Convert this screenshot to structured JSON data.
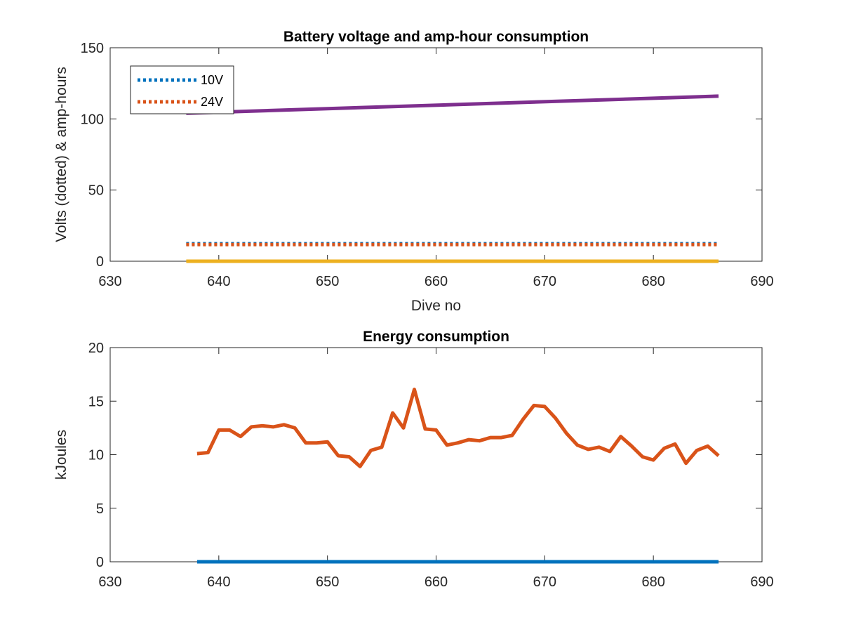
{
  "chart_data": [
    {
      "type": "line",
      "title": "Battery voltage and amp-hour consumption",
      "xlabel": "Dive no",
      "ylabel": "Volts (dotted) & amp-hours",
      "xlim": [
        630,
        690
      ],
      "ylim": [
        0,
        150
      ],
      "xticks": [
        "630",
        "640",
        "650",
        "660",
        "670",
        "680",
        "690"
      ],
      "yticks": [
        "0",
        "50",
        "100",
        "150"
      ],
      "grid": false,
      "legend_position": "top-left",
      "series": [
        {
          "name": "10V",
          "color": "#0072BD",
          "style": "dotted",
          "x": [
            637,
            686
          ],
          "y": [
            12.3,
            12.3
          ]
        },
        {
          "name": "24V",
          "color": "#D95319",
          "style": "dotted",
          "x": [
            637,
            686
          ],
          "y": [
            11.7,
            11.7
          ]
        },
        {
          "color": "#EDB120",
          "style": "solid",
          "x": [
            637,
            686
          ],
          "y": [
            0,
            0
          ]
        },
        {
          "color": "#7E2F8E",
          "style": "solid",
          "x": [
            637,
            686
          ],
          "y": [
            104,
            116
          ]
        }
      ]
    },
    {
      "type": "line",
      "title": "Energy consumption",
      "xlabel": "",
      "ylabel": "kJoules",
      "xlim": [
        630,
        690
      ],
      "ylim": [
        0,
        20
      ],
      "xticks": [
        "630",
        "640",
        "650",
        "660",
        "670",
        "680",
        "690"
      ],
      "yticks": [
        "0",
        "5",
        "10",
        "15",
        "20"
      ],
      "grid": false,
      "series": [
        {
          "color": "#0072BD",
          "style": "solid",
          "x": [
            638,
            686
          ],
          "y": [
            0,
            0
          ]
        },
        {
          "color": "#D95319",
          "style": "solid",
          "x": [
            638,
            639,
            640,
            641,
            642,
            643,
            644,
            645,
            646,
            647,
            648,
            649,
            650,
            651,
            652,
            653,
            654,
            655,
            656,
            657,
            658,
            659,
            660,
            661,
            662,
            663,
            664,
            665,
            666,
            667,
            668,
            669,
            670,
            671,
            672,
            673,
            674,
            675,
            676,
            677,
            678,
            679,
            680,
            681,
            682,
            683,
            684,
            685,
            686
          ],
          "y": [
            10.1,
            10.2,
            12.3,
            12.3,
            11.7,
            12.6,
            12.7,
            12.6,
            12.8,
            12.5,
            11.1,
            11.1,
            11.2,
            9.9,
            9.8,
            8.9,
            10.4,
            10.7,
            13.9,
            12.5,
            16.1,
            12.4,
            12.3,
            10.9,
            11.1,
            11.4,
            11.3,
            11.6,
            11.6,
            11.8,
            13.3,
            14.6,
            14.5,
            13.4,
            12.0,
            10.9,
            10.5,
            10.7,
            10.3,
            11.7,
            10.8,
            9.8,
            9.5,
            10.6,
            11.0,
            9.2,
            10.4,
            10.8,
            9.9
          ]
        }
      ]
    }
  ]
}
